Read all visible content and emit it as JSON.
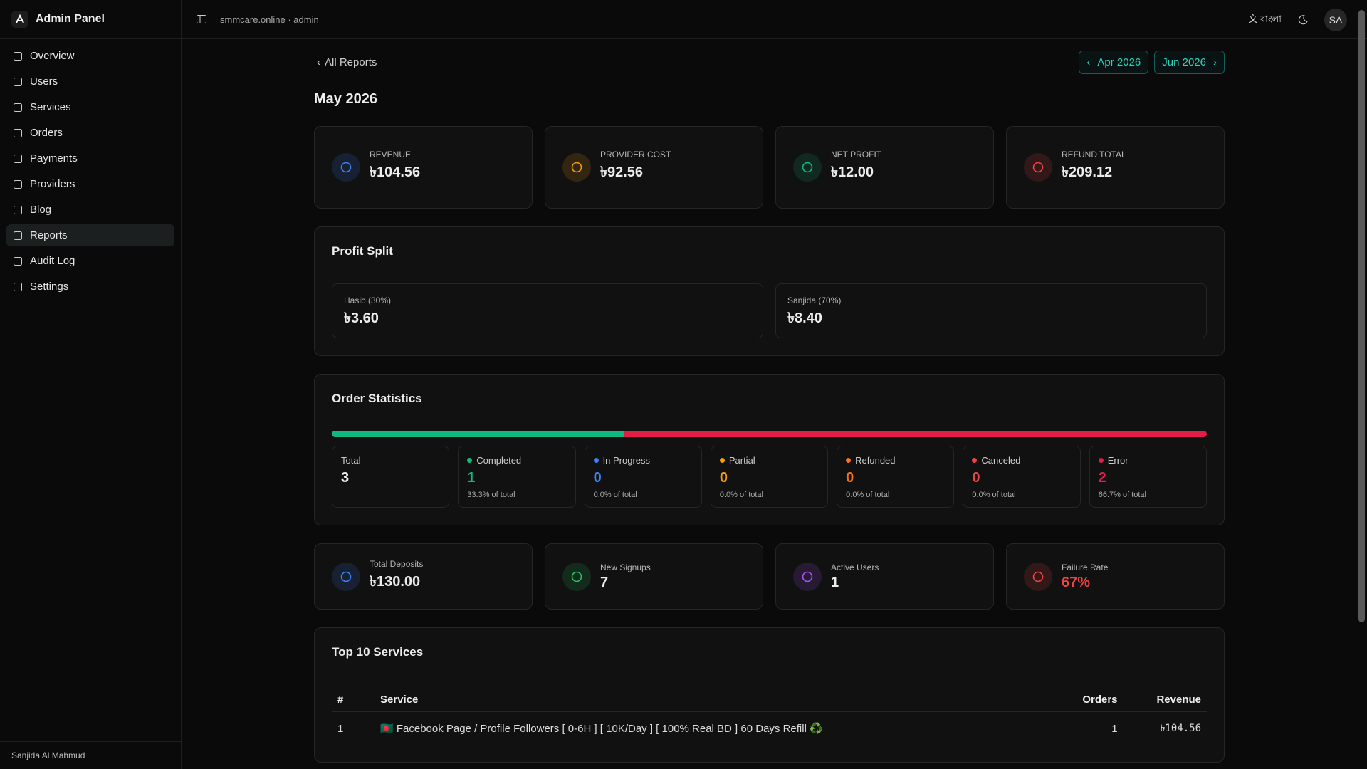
{
  "sidebar": {
    "brand": "Admin Panel",
    "nav": [
      "Overview",
      "Users",
      "Services",
      "Orders",
      "Payments",
      "Providers",
      "Blog",
      "Reports",
      "Audit Log",
      "Settings"
    ],
    "active": 7,
    "user": "Sanjida Al Mahmud"
  },
  "topbar": {
    "site": "smmcare.online · admin",
    "language": "বাংলা",
    "avatar": "SA"
  },
  "report": {
    "back": "All Reports",
    "prev": "Apr 2026",
    "next": "Jun 2026",
    "title": "May 2026",
    "kpis": [
      {
        "label": "REVENUE",
        "value": "৳104.56",
        "color": "#3b82f6"
      },
      {
        "label": "PROVIDER COST",
        "value": "৳92.56",
        "color": "#f59e0b"
      },
      {
        "label": "NET PROFIT",
        "value": "৳12.00",
        "color": "#10b981"
      },
      {
        "label": "REFUND TOTAL",
        "value": "৳209.12",
        "color": "#ef4444"
      }
    ],
    "profit_split": {
      "title": "Profit Split",
      "items": [
        {
          "label": "Hasib (30%)",
          "value": "৳3.60"
        },
        {
          "label": "Sanjida (70%)",
          "value": "৳8.40"
        }
      ]
    },
    "order_statistics": {
      "title": "Order Statistics",
      "total": {
        "label": "Total",
        "value": 3
      },
      "statuses": [
        {
          "label": "Completed",
          "count": 1,
          "share": "33.3% of total",
          "color": "#10b981"
        },
        {
          "label": "In Progress",
          "count": 0,
          "share": "0.0% of total",
          "color": "#3b82f6"
        },
        {
          "label": "Partial",
          "count": 0,
          "share": "0.0% of total",
          "color": "#f59e0b"
        },
        {
          "label": "Refunded",
          "count": 0,
          "share": "0.0% of total",
          "color": "#f97316"
        },
        {
          "label": "Canceled",
          "count": 0,
          "share": "0.0% of total",
          "color": "#ef4444"
        },
        {
          "label": "Error",
          "count": 2,
          "share": "66.7% of total",
          "color": "#e11d48"
        }
      ]
    },
    "metrics": [
      {
        "label": "Total Deposits",
        "value": "৳130.00",
        "color": "#3b82f6"
      },
      {
        "label": "New Signups",
        "value": "7",
        "color": "#22c55e"
      },
      {
        "label": "Active Users",
        "value": "1",
        "color": "#a855f7"
      },
      {
        "label": "Failure Rate",
        "value": "67%",
        "color": "#ef4444"
      }
    ],
    "top_services": {
      "title": "Top 10 Services",
      "columns": [
        "#",
        "Service",
        "Orders",
        "Revenue"
      ],
      "rows": [
        [
          1,
          "🇧🇩 Facebook Page / Profile Followers [ 0-6H ] [ 10K/Day ] [ 100% Real BD ] 60 Days Refill ♻️",
          1,
          "৳104.56"
        ]
      ]
    }
  }
}
